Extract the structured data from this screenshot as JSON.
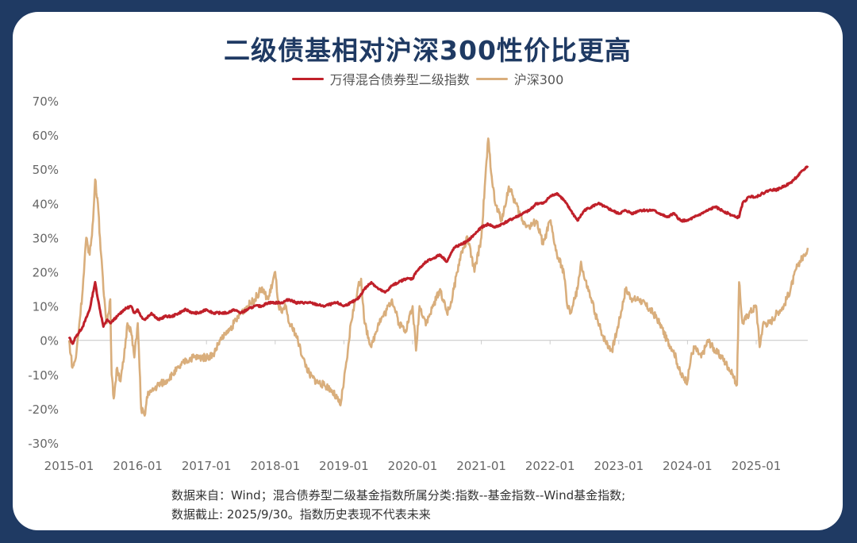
{
  "title": "二级债基相对沪深300性价比更高",
  "colors": {
    "frame": "#1f3a63",
    "bond": "#c0202a",
    "csi": "#d9ae7c",
    "axis": "#cccccc",
    "tick_text": "#666666"
  },
  "footnote": {
    "line1": "数据来自：Wind；混合债券型二级基金指数所属分类:指数--基金指数--Wind基金指数;",
    "line2": "数据截止: 2025/9/30。指数历史表现不代表未来"
  },
  "chart_data": {
    "type": "line",
    "title": "二级债基相对沪深300性价比更高",
    "xlabel": "",
    "ylabel": "",
    "ylim": [
      -30,
      70
    ],
    "y_ticks": [
      "70%",
      "60%",
      "50%",
      "40%",
      "30%",
      "20%",
      "10%",
      "0%",
      "-10%",
      "-20%",
      "-30%"
    ],
    "y_tick_values": [
      70,
      60,
      50,
      40,
      30,
      20,
      10,
      0,
      -10,
      -20,
      -30
    ],
    "x_ticks": [
      "2015-01",
      "2016-01",
      "2017-01",
      "2018-01",
      "2019-01",
      "2020-01",
      "2021-01",
      "2022-01",
      "2023-01",
      "2024-01",
      "2025-01"
    ],
    "xlim_years": [
      2015.0,
      2025.75
    ],
    "grid": false,
    "legend_position": "top-center",
    "series": [
      {
        "name": "万得混合债券型二级指数",
        "color": "#c0202a",
        "x": [
          2015.0,
          2015.05,
          2015.1,
          2015.2,
          2015.3,
          2015.38,
          2015.42,
          2015.5,
          2015.55,
          2015.6,
          2015.7,
          2015.8,
          2015.9,
          2015.95,
          2016.0,
          2016.05,
          2016.1,
          2016.2,
          2016.3,
          2016.4,
          2016.5,
          2016.6,
          2016.7,
          2016.8,
          2016.9,
          2017.0,
          2017.1,
          2017.2,
          2017.3,
          2017.4,
          2017.5,
          2017.6,
          2017.7,
          2017.8,
          2017.9,
          2018.0,
          2018.1,
          2018.2,
          2018.3,
          2018.5,
          2018.7,
          2018.9,
          2019.0,
          2019.1,
          2019.2,
          2019.3,
          2019.4,
          2019.5,
          2019.6,
          2019.7,
          2019.8,
          2019.9,
          2020.0,
          2020.05,
          2020.1,
          2020.2,
          2020.3,
          2020.4,
          2020.5,
          2020.55,
          2020.6,
          2020.7,
          2020.8,
          2020.9,
          2021.0,
          2021.1,
          2021.2,
          2021.3,
          2021.4,
          2021.5,
          2021.6,
          2021.7,
          2021.8,
          2021.9,
          2022.0,
          2022.1,
          2022.2,
          2022.3,
          2022.4,
          2022.5,
          2022.6,
          2022.7,
          2022.8,
          2022.9,
          2023.0,
          2023.1,
          2023.2,
          2023.3,
          2023.4,
          2023.5,
          2023.6,
          2023.7,
          2023.8,
          2023.9,
          2024.0,
          2024.1,
          2024.2,
          2024.3,
          2024.4,
          2024.5,
          2024.6,
          2024.7,
          2024.75,
          2024.8,
          2024.9,
          2025.0,
          2025.1,
          2025.2,
          2025.3,
          2025.4,
          2025.5,
          2025.6,
          2025.7,
          2025.75
        ],
        "values": [
          1,
          -1,
          1,
          4,
          9,
          17,
          12,
          4,
          6,
          5,
          7,
          9,
          10,
          8,
          9,
          7,
          6,
          8,
          6,
          7,
          7,
          8,
          9,
          8,
          8,
          9,
          8,
          8,
          8,
          9,
          8,
          9,
          10,
          10,
          11,
          11,
          11,
          12,
          11,
          11,
          10,
          11,
          10,
          11,
          12,
          15,
          17,
          15,
          14,
          16,
          17,
          18,
          18,
          20,
          21,
          23,
          24,
          25,
          23,
          25,
          27,
          28,
          29,
          31,
          33,
          34,
          33,
          34,
          35,
          36,
          37,
          38,
          40,
          40,
          42,
          43,
          41,
          38,
          35,
          38,
          39,
          40,
          39,
          38,
          37,
          38,
          37,
          38,
          38,
          38,
          37,
          36,
          37,
          35,
          35,
          36,
          37,
          38,
          39,
          38,
          37,
          36,
          36,
          40,
          42,
          42,
          43,
          44,
          44,
          45,
          46,
          48,
          50,
          51
        ]
      },
      {
        "name": "沪深300",
        "color": "#d9ae7c",
        "x": [
          2015.0,
          2015.05,
          2015.1,
          2015.15,
          2015.2,
          2015.25,
          2015.3,
          2015.35,
          2015.38,
          2015.42,
          2015.45,
          2015.5,
          2015.55,
          2015.6,
          2015.62,
          2015.65,
          2015.7,
          2015.75,
          2015.8,
          2015.85,
          2015.9,
          2015.95,
          2016.0,
          2016.05,
          2016.1,
          2016.15,
          2016.2,
          2016.3,
          2016.4,
          2016.5,
          2016.6,
          2016.7,
          2016.8,
          2016.9,
          2017.0,
          2017.1,
          2017.2,
          2017.3,
          2017.4,
          2017.5,
          2017.6,
          2017.7,
          2017.8,
          2017.9,
          2018.0,
          2018.05,
          2018.1,
          2018.15,
          2018.2,
          2018.3,
          2018.4,
          2018.5,
          2018.6,
          2018.7,
          2018.8,
          2018.9,
          2018.95,
          2019.0,
          2019.05,
          2019.1,
          2019.2,
          2019.25,
          2019.3,
          2019.4,
          2019.5,
          2019.6,
          2019.7,
          2019.8,
          2019.9,
          2020.0,
          2020.05,
          2020.1,
          2020.2,
          2020.3,
          2020.4,
          2020.5,
          2020.55,
          2020.6,
          2020.7,
          2020.8,
          2020.9,
          2021.0,
          2021.05,
          2021.1,
          2021.15,
          2021.2,
          2021.3,
          2021.4,
          2021.5,
          2021.6,
          2021.7,
          2021.8,
          2021.9,
          2022.0,
          2022.1,
          2022.2,
          2022.25,
          2022.3,
          2022.4,
          2022.45,
          2022.5,
          2022.6,
          2022.7,
          2022.8,
          2022.9,
          2023.0,
          2023.1,
          2023.2,
          2023.3,
          2023.4,
          2023.5,
          2023.6,
          2023.7,
          2023.8,
          2023.9,
          2024.0,
          2024.05,
          2024.1,
          2024.2,
          2024.3,
          2024.4,
          2024.5,
          2024.6,
          2024.65,
          2024.7,
          2024.72,
          2024.75,
          2024.8,
          2024.9,
          2025.0,
          2025.05,
          2025.1,
          2025.2,
          2025.3,
          2025.4,
          2025.5,
          2025.6,
          2025.7,
          2025.75
        ],
        "values": [
          0,
          -8,
          -5,
          5,
          15,
          30,
          25,
          35,
          47,
          40,
          30,
          15,
          5,
          12,
          -10,
          -17,
          -8,
          -12,
          -5,
          5,
          3,
          -5,
          5,
          -20,
          -22,
          -15,
          -15,
          -13,
          -12,
          -10,
          -8,
          -6,
          -5,
          -5,
          -5,
          -4,
          0,
          2,
          5,
          8,
          10,
          12,
          15,
          12,
          20,
          10,
          8,
          10,
          5,
          2,
          -5,
          -10,
          -12,
          -13,
          -14,
          -17,
          -19,
          -12,
          -5,
          5,
          15,
          18,
          5,
          -2,
          5,
          8,
          12,
          5,
          3,
          10,
          -3,
          10,
          5,
          10,
          15,
          8,
          10,
          15,
          25,
          30,
          20,
          30,
          45,
          59,
          48,
          40,
          35,
          45,
          40,
          35,
          33,
          35,
          28,
          35,
          25,
          20,
          10,
          8,
          15,
          23,
          18,
          12,
          5,
          0,
          -3,
          5,
          15,
          12,
          12,
          10,
          8,
          5,
          0,
          -3,
          -10,
          -12,
          -5,
          -2,
          -5,
          0,
          -3,
          -5,
          -8,
          -10,
          -12,
          -13,
          17,
          5,
          8,
          10,
          -2,
          5,
          5,
          8,
          10,
          15,
          22,
          25,
          27
        ]
      }
    ]
  }
}
